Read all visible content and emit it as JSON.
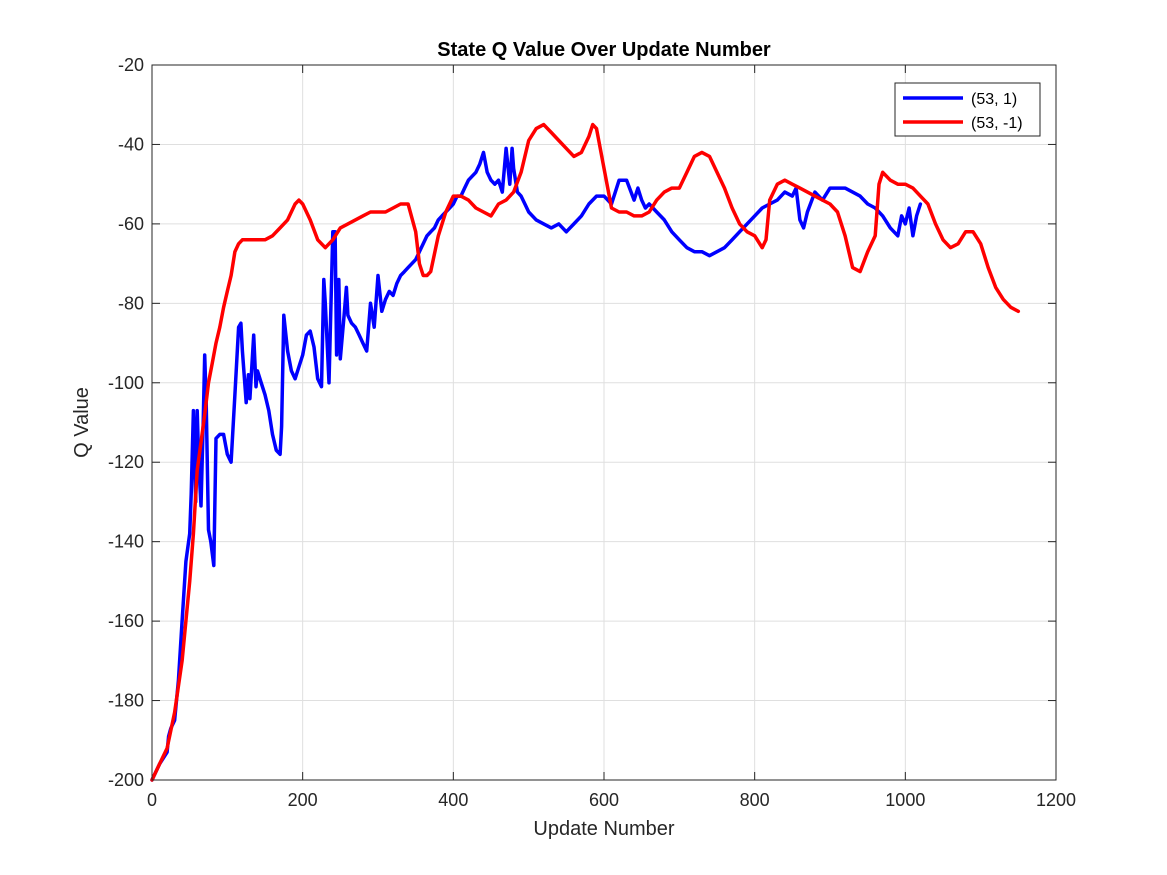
{
  "chart_data": {
    "type": "line",
    "title": "State Q Value Over Update Number",
    "xlabel": "Update Number",
    "ylabel": "Q Value",
    "xlim": [
      0,
      1200
    ],
    "ylim": [
      -200,
      -20
    ],
    "xticks": [
      0,
      200,
      400,
      600,
      800,
      1000,
      1200
    ],
    "yticks": [
      -200,
      -180,
      -160,
      -140,
      -120,
      -100,
      -80,
      -60,
      -40,
      -20
    ],
    "grid": true,
    "legend_position": "top-right",
    "series": [
      {
        "name": "(53, 1)",
        "color": "#0000ff",
        "x": [
          0,
          10,
          20,
          22,
          25,
          30,
          35,
          40,
          45,
          50,
          52,
          55,
          58,
          60,
          62,
          65,
          68,
          70,
          72,
          75,
          78,
          80,
          82,
          85,
          90,
          95,
          100,
          105,
          110,
          115,
          118,
          120,
          125,
          128,
          130,
          135,
          138,
          140,
          145,
          150,
          155,
          160,
          165,
          170,
          172,
          175,
          180,
          185,
          190,
          195,
          200,
          205,
          210,
          215,
          220,
          225,
          228,
          230,
          235,
          240,
          243,
          245,
          248,
          250,
          255,
          258,
          260,
          265,
          270,
          275,
          280,
          285,
          290,
          295,
          300,
          305,
          310,
          315,
          320,
          325,
          330,
          335,
          340,
          345,
          350,
          355,
          360,
          365,
          370,
          375,
          380,
          385,
          390,
          395,
          400,
          405,
          410,
          415,
          420,
          425,
          430,
          435,
          440,
          445,
          450,
          455,
          460,
          465,
          470,
          475,
          478,
          480,
          485,
          490,
          495,
          500,
          510,
          520,
          530,
          540,
          550,
          560,
          570,
          580,
          590,
          600,
          610,
          620,
          630,
          640,
          645,
          650,
          655,
          660,
          670,
          680,
          690,
          700,
          710,
          720,
          730,
          740,
          750,
          760,
          770,
          780,
          790,
          800,
          810,
          820,
          830,
          840,
          850,
          855,
          860,
          865,
          870,
          880,
          890,
          900,
          910,
          920,
          930,
          940,
          950,
          960,
          970,
          980,
          990,
          995,
          1000,
          1005,
          1010,
          1015,
          1020
        ],
        "y": [
          -200,
          -196,
          -193,
          -189,
          -187,
          -185,
          -175,
          -160,
          -145,
          -138,
          -128,
          -107,
          -130,
          -107,
          -120,
          -131,
          -110,
          -93,
          -105,
          -137,
          -140,
          -143,
          -146,
          -114,
          -113,
          -113,
          -118,
          -120,
          -103,
          -86,
          -85,
          -92,
          -105,
          -98,
          -104,
          -88,
          -101,
          -97,
          -100,
          -103,
          -107,
          -113,
          -117,
          -118,
          -111,
          -83,
          -92,
          -97,
          -99,
          -96,
          -93,
          -88,
          -87,
          -91,
          -99,
          -101,
          -74,
          -80,
          -100,
          -62,
          -62,
          -93,
          -74,
          -94,
          -83,
          -76,
          -83,
          -85,
          -86,
          -88,
          -90,
          -92,
          -80,
          -86,
          -73,
          -82,
          -79,
          -77,
          -78,
          -75,
          -73,
          -72,
          -71,
          -70,
          -69,
          -67,
          -65,
          -63,
          -62,
          -61,
          -59,
          -58,
          -57,
          -56,
          -55,
          -53,
          -53,
          -51,
          -49,
          -48,
          -47,
          -45,
          -42,
          -47,
          -49,
          -50,
          -49,
          -52,
          -41,
          -50,
          -41,
          -46,
          -52,
          -53,
          -55,
          -57,
          -59,
          -60,
          -61,
          -60,
          -62,
          -60,
          -58,
          -55,
          -53,
          -53,
          -55,
          -49,
          -49,
          -54,
          -51,
          -54,
          -56,
          -55,
          -57,
          -59,
          -62,
          -64,
          -66,
          -67,
          -67,
          -68,
          -67,
          -66,
          -64,
          -62,
          -60,
          -58,
          -56,
          -55,
          -54,
          -52,
          -53,
          -51,
          -59,
          -61,
          -57,
          -52,
          -54,
          -51,
          -51,
          -51,
          -52,
          -53,
          -55,
          -56,
          -58,
          -61,
          -63,
          -58,
          -60,
          -56,
          -63,
          -58,
          -55
        ]
      },
      {
        "name": "(53, -1)",
        "color": "#ff0000",
        "x": [
          0,
          10,
          20,
          30,
          40,
          45,
          50,
          55,
          60,
          65,
          70,
          75,
          80,
          85,
          90,
          95,
          100,
          105,
          110,
          115,
          120,
          130,
          140,
          150,
          160,
          170,
          180,
          190,
          195,
          200,
          210,
          220,
          230,
          240,
          250,
          260,
          270,
          280,
          290,
          300,
          310,
          320,
          330,
          340,
          350,
          355,
          360,
          365,
          370,
          380,
          390,
          400,
          410,
          420,
          430,
          440,
          450,
          460,
          470,
          480,
          490,
          500,
          510,
          520,
          530,
          540,
          550,
          560,
          570,
          580,
          585,
          590,
          600,
          610,
          620,
          630,
          640,
          650,
          660,
          670,
          680,
          690,
          700,
          710,
          720,
          730,
          740,
          750,
          760,
          770,
          780,
          790,
          800,
          810,
          815,
          820,
          830,
          840,
          850,
          860,
          870,
          880,
          890,
          900,
          910,
          920,
          930,
          940,
          950,
          960,
          965,
          970,
          980,
          990,
          1000,
          1010,
          1020,
          1030,
          1040,
          1050,
          1060,
          1070,
          1080,
          1090,
          1100,
          1110,
          1120,
          1130,
          1140,
          1150
        ],
        "y": [
          -200,
          -196,
          -192,
          -183,
          -170,
          -160,
          -150,
          -138,
          -122,
          -115,
          -108,
          -100,
          -95,
          -90,
          -86,
          -81,
          -77,
          -73,
          -67,
          -65,
          -64,
          -64,
          -64,
          -64,
          -63,
          -61,
          -59,
          -55,
          -54,
          -55,
          -59,
          -64,
          -66,
          -64,
          -61,
          -60,
          -59,
          -58,
          -57,
          -57,
          -57,
          -56,
          -55,
          -55,
          -62,
          -70,
          -73,
          -73,
          -72,
          -63,
          -57,
          -53,
          -53,
          -54,
          -56,
          -57,
          -58,
          -55,
          -54,
          -52,
          -47,
          -39,
          -36,
          -35,
          -37,
          -39,
          -41,
          -43,
          -42,
          -38,
          -35,
          -36,
          -46,
          -56,
          -57,
          -57,
          -58,
          -58,
          -57,
          -54,
          -52,
          -51,
          -51,
          -47,
          -43,
          -42,
          -43,
          -47,
          -51,
          -56,
          -60,
          -62,
          -63,
          -66,
          -64,
          -54,
          -50,
          -49,
          -50,
          -51,
          -52,
          -53,
          -54,
          -55,
          -57,
          -63,
          -71,
          -72,
          -67,
          -63,
          -50,
          -47,
          -49,
          -50,
          -50,
          -51,
          -53,
          -55,
          -60,
          -64,
          -66,
          -65,
          -62,
          -62,
          -65,
          -71,
          -76,
          -79,
          -81,
          -82
        ]
      }
    ]
  }
}
